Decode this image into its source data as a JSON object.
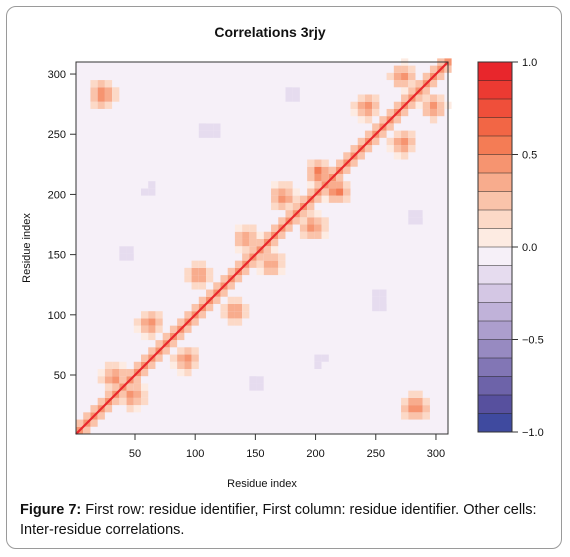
{
  "chart_data": {
    "type": "heatmap",
    "title": "Correlations 3rjy",
    "xlabel": "Residue index",
    "ylabel": "Residue index",
    "xlim": [
      1,
      310
    ],
    "ylim": [
      1,
      310
    ],
    "x_ticks": [
      50,
      100,
      150,
      200,
      250,
      300
    ],
    "y_ticks": [
      50,
      100,
      150,
      200,
      250,
      300
    ],
    "colorbar": {
      "range": [
        -1.0,
        1.0
      ],
      "tick_values": [
        1.0,
        0.5,
        0.0,
        -0.5,
        -1.0
      ],
      "tick_labels": [
        "1.0",
        "0.5",
        "0.0",
        "−0.5",
        "−1.0"
      ],
      "bins": 20,
      "colors_top_to_bottom": [
        "#e8262c",
        "#ec3a32",
        "#ef4f3a",
        "#f26645",
        "#f47c55",
        "#f69470",
        "#f8ac8d",
        "#fac3aa",
        "#fcd9c7",
        "#fdebe2",
        "#f6f0f8",
        "#e6dcef",
        "#d4c7e4",
        "#c0b2d9",
        "#ac9ecd",
        "#978ac1",
        "#8276b5",
        "#6d63a9",
        "#57509e",
        "#3f4a9f"
      ]
    },
    "diagonal_value": 1.0,
    "note_regions": [
      {
        "i": 20,
        "j": 280,
        "value": 0.6
      },
      {
        "i": 30,
        "j": 45,
        "value": 0.5
      },
      {
        "i": 60,
        "j": 90,
        "value": 0.5
      },
      {
        "i": 100,
        "j": 130,
        "value": 0.5
      },
      {
        "i": 140,
        "j": 160,
        "value": 0.5
      },
      {
        "i": 170,
        "j": 195,
        "value": 0.5
      },
      {
        "i": 200,
        "j": 215,
        "value": 0.6
      },
      {
        "i": 240,
        "j": 270,
        "value": 0.5
      },
      {
        "i": 270,
        "j": 295,
        "value": 0.5
      },
      {
        "i": 60,
        "j": 200,
        "value": -0.2
      },
      {
        "i": 110,
        "j": 250,
        "value": -0.25
      },
      {
        "i": 40,
        "j": 150,
        "value": -0.2
      },
      {
        "i": 180,
        "j": 280,
        "value": -0.2
      }
    ]
  },
  "caption": {
    "label": "Figure 7:",
    "text": " First row: residue identifier, First column: residue identifier. Other cells: Inter-residue correlations."
  }
}
